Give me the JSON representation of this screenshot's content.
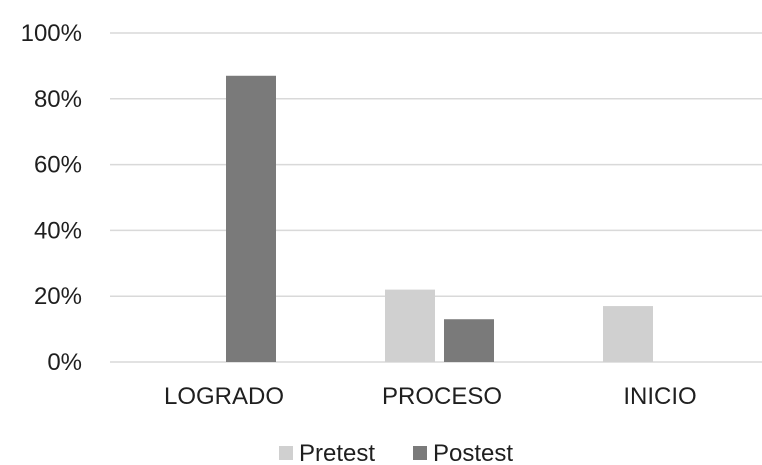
{
  "chart_data": {
    "type": "bar",
    "categories": [
      "LOGRADO",
      "PROCESO",
      "INICIO"
    ],
    "series": [
      {
        "name": "Pretest",
        "values": [
          0,
          22,
          17
        ],
        "color": "#d0d0d0"
      },
      {
        "name": "Postest",
        "values": [
          87,
          13,
          0
        ],
        "color": "#7a7a7a"
      }
    ],
    "y_ticks": [
      0,
      20,
      40,
      60,
      80,
      100
    ],
    "y_tick_labels": [
      "0%",
      "20%",
      "40%",
      "60%",
      "80%",
      "100%"
    ],
    "ylim": [
      0,
      100
    ],
    "grid": true,
    "legend_position": "bottom",
    "title": "",
    "xlabel": "",
    "ylabel": ""
  }
}
